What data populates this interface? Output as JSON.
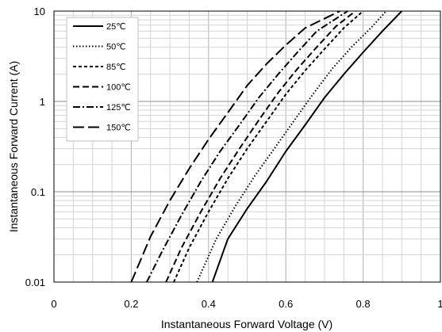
{
  "chart_data": {
    "type": "line",
    "title": "",
    "xlabel": "Instantaneous Forward Voltage (V)",
    "ylabel": "Instantaneous Forward Current (A)",
    "xlim": [
      0,
      1
    ],
    "ylim": [
      0.01,
      10
    ],
    "y_scale": "log",
    "grid": true,
    "x_ticks": [
      "0",
      "0.2",
      "0.4",
      "0.6",
      "0.8",
      "1"
    ],
    "y_ticks": [
      "0.01",
      "0.1",
      "1",
      "10"
    ],
    "legend_position": "top-left",
    "series": [
      {
        "name": "25℃",
        "dash": "solid",
        "x": [
          0.41,
          0.45,
          0.5,
          0.55,
          0.6,
          0.65,
          0.7,
          0.75,
          0.8,
          0.85,
          0.9
        ],
        "y": [
          0.01,
          0.03,
          0.065,
          0.13,
          0.28,
          0.55,
          1.1,
          2.0,
          3.5,
          6.0,
          10
        ]
      },
      {
        "name": "50℃",
        "dash": "dotted",
        "x": [
          0.37,
          0.42,
          0.47,
          0.52,
          0.57,
          0.62,
          0.67,
          0.72,
          0.77,
          0.82,
          0.86
        ],
        "y": [
          0.01,
          0.03,
          0.07,
          0.15,
          0.3,
          0.6,
          1.2,
          2.3,
          4.0,
          6.5,
          10
        ]
      },
      {
        "name": "85℃",
        "dash": "short-dash",
        "x": [
          0.31,
          0.35,
          0.4,
          0.45,
          0.5,
          0.55,
          0.6,
          0.65,
          0.7,
          0.75,
          0.8
        ],
        "y": [
          0.01,
          0.024,
          0.06,
          0.14,
          0.3,
          0.6,
          1.2,
          2.2,
          3.8,
          6.5,
          10
        ]
      },
      {
        "name": "100℃",
        "dash": "dash",
        "x": [
          0.29,
          0.33,
          0.38,
          0.43,
          0.48,
          0.53,
          0.58,
          0.63,
          0.68,
          0.73,
          0.78
        ],
        "y": [
          0.01,
          0.024,
          0.06,
          0.14,
          0.3,
          0.62,
          1.25,
          2.3,
          4.0,
          6.8,
          10
        ]
      },
      {
        "name": "125℃",
        "dash": "dash-dot",
        "x": [
          0.24,
          0.28,
          0.33,
          0.38,
          0.43,
          0.48,
          0.53,
          0.58,
          0.63,
          0.68,
          0.76
        ],
        "y": [
          0.01,
          0.022,
          0.055,
          0.13,
          0.28,
          0.55,
          1.1,
          2.0,
          3.5,
          6.0,
          10
        ]
      },
      {
        "name": "150℃",
        "dash": "long-dash",
        "x": [
          0.2,
          0.25,
          0.3,
          0.35,
          0.4,
          0.45,
          0.5,
          0.55,
          0.6,
          0.65,
          0.74
        ],
        "y": [
          0.01,
          0.032,
          0.08,
          0.18,
          0.38,
          0.75,
          1.5,
          2.6,
          4.2,
          6.5,
          10
        ]
      }
    ]
  }
}
